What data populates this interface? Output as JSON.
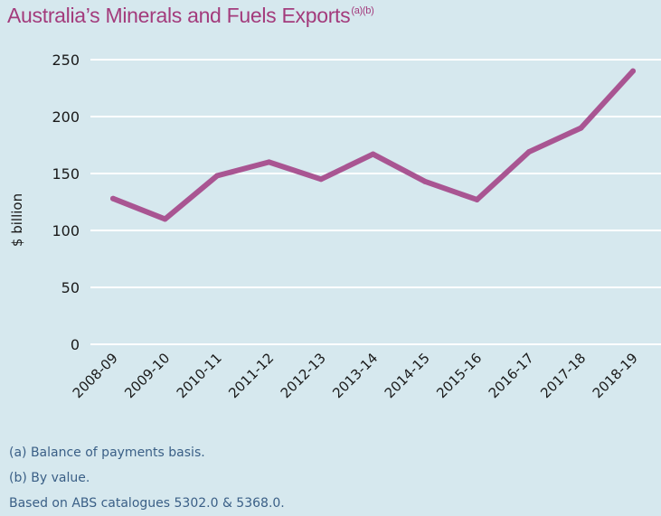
{
  "chart_data": {
    "type": "line",
    "title": "Australia’s Minerals and Fuels Exports",
    "title_superscript": "(a)(b)",
    "ylabel": "$ billion",
    "xlabel": "",
    "ylim": [
      0,
      250
    ],
    "yticks": [
      0,
      50,
      100,
      150,
      200,
      250
    ],
    "grid": "horizontal",
    "categories": [
      "2008-09",
      "2009-10",
      "2010-11",
      "2011-12",
      "2012-13",
      "2013-14",
      "2014-15",
      "2015-16",
      "2016-17",
      "2017-18",
      "2018-19"
    ],
    "series": [
      {
        "color": "#a95592",
        "values": [
          128,
          110,
          148,
          160,
          145,
          167,
          143,
          127,
          169,
          190,
          240
        ]
      }
    ]
  },
  "footnotes": [
    "(a) Balance of payments basis.",
    "(b) By value.",
    "Based on ABS catalogues 5302.0 & 5368.0."
  ],
  "colors": {
    "background": "#d6e8ee",
    "title": "#a33b7c",
    "gridline": "#ffffff",
    "text": "#1a1a1a",
    "footnote": "#3a5f86"
  }
}
